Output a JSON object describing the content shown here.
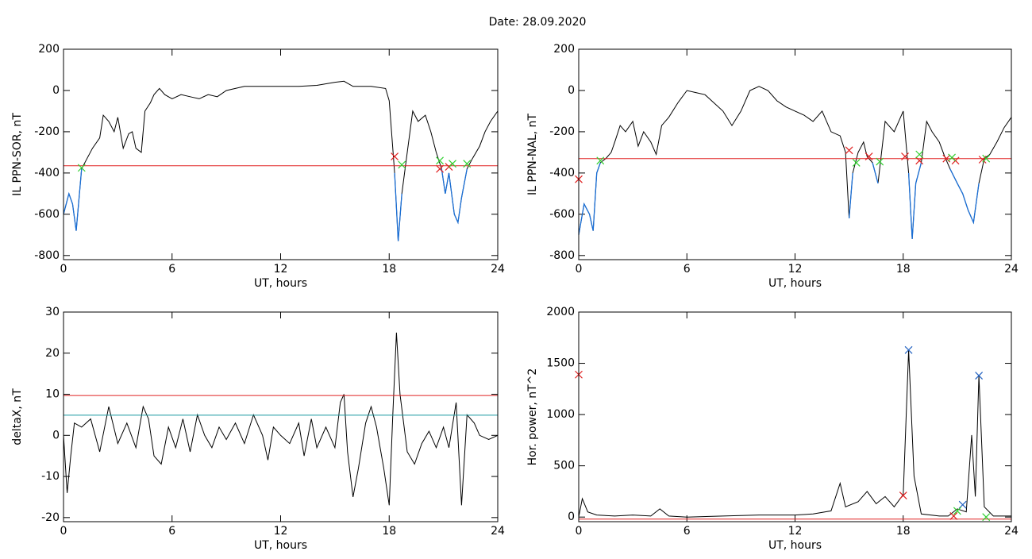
{
  "title": "Date:  28.09.2020",
  "chart_data": [
    {
      "type": "line",
      "xlabel": "UT, hours",
      "ylabel": "IL PPN-SOR, nT",
      "xlim": [
        0,
        24
      ],
      "ylim": [
        -820,
        200
      ],
      "xticks": [
        0,
        6,
        12,
        18,
        24
      ],
      "yticks": [
        200,
        0,
        -200,
        -400,
        -600,
        -800
      ],
      "series": [
        {
          "color": "#000000",
          "below_color": "#1a6fd6",
          "x": [
            0,
            0.3,
            0.5,
            0.7,
            1.0,
            1.3,
            1.6,
            2.0,
            2.2,
            2.5,
            2.8,
            3.0,
            3.3,
            3.6,
            3.8,
            4.0,
            4.3,
            4.5,
            4.8,
            5.0,
            5.3,
            5.6,
            6.0,
            6.5,
            7.0,
            7.5,
            8.0,
            8.5,
            9,
            9.5,
            10,
            11,
            12,
            13,
            14,
            15,
            15.5,
            16,
            17,
            17.8,
            18.0,
            18.3,
            18.5,
            18.7,
            19.0,
            19.3,
            19.6,
            20.0,
            20.3,
            20.6,
            20.9,
            21.1,
            21.3,
            21.6,
            21.8,
            22.0,
            22.3,
            22.6,
            23.0,
            23.3,
            23.6,
            24
          ],
          "values": [
            -600,
            -500,
            -550,
            -680,
            -380,
            -330,
            -280,
            -230,
            -120,
            -150,
            -200,
            -130,
            -280,
            -210,
            -200,
            -280,
            -300,
            -100,
            -60,
            -20,
            10,
            -20,
            -40,
            -20,
            -30,
            -40,
            -20,
            -30,
            0,
            10,
            20,
            20,
            20,
            20,
            25,
            40,
            45,
            20,
            20,
            10,
            -50,
            -400,
            -730,
            -500,
            -300,
            -100,
            -150,
            -120,
            -200,
            -300,
            -380,
            -500,
            -400,
            -600,
            -640,
            -520,
            -380,
            -330,
            -270,
            -200,
            -150,
            -100
          ]
        }
      ],
      "hlines": [
        {
          "value": -365,
          "color": "#e02020"
        }
      ],
      "markers": [
        {
          "color": "#e02020",
          "x": [
            18.3,
            20.8,
            21.3
          ],
          "values": [
            -320,
            -380,
            -370
          ]
        },
        {
          "color": "#30d030",
          "x": [
            1.0,
            18.7,
            20.8,
            21.5,
            22.3
          ],
          "values": [
            -375,
            -360,
            -340,
            -355,
            -355
          ]
        }
      ]
    },
    {
      "type": "line",
      "xlabel": "UT, hours",
      "ylabel": "IL PPN-NAL, nT",
      "xlim": [
        0,
        24
      ],
      "ylim": [
        -820,
        200
      ],
      "xticks": [
        0,
        6,
        12,
        18,
        24
      ],
      "yticks": [
        200,
        0,
        -200,
        -400,
        -600,
        -800
      ],
      "series": [
        {
          "color": "#000000",
          "below_color": "#1a6fd6",
          "x": [
            0,
            0.3,
            0.6,
            0.8,
            1.0,
            1.2,
            1.5,
            1.8,
            2.0,
            2.3,
            2.6,
            3.0,
            3.3,
            3.6,
            4.0,
            4.3,
            4.6,
            5.0,
            5.5,
            6.0,
            6.5,
            7.0,
            7.5,
            8.0,
            8.5,
            9.0,
            9.5,
            10,
            10.5,
            11,
            11.5,
            12,
            12.5,
            13,
            13.5,
            14.0,
            14.5,
            14.8,
            15.0,
            15.2,
            15.5,
            15.8,
            16.0,
            16.3,
            16.6,
            16.8,
            17.0,
            17.5,
            18.0,
            18.3,
            18.5,
            18.7,
            19.0,
            19.3,
            19.6,
            20.0,
            20.3,
            20.6,
            21.0,
            21.3,
            21.6,
            21.9,
            22.2,
            22.5,
            22.8,
            23.2,
            23.6,
            24
          ],
          "values": [
            -700,
            -550,
            -600,
            -680,
            -400,
            -350,
            -330,
            -300,
            -250,
            -170,
            -200,
            -150,
            -270,
            -200,
            -250,
            -310,
            -170,
            -130,
            -60,
            0,
            -10,
            -20,
            -60,
            -100,
            -170,
            -100,
            0,
            20,
            0,
            -50,
            -80,
            -100,
            -120,
            -150,
            -100,
            -200,
            -220,
            -300,
            -620,
            -400,
            -300,
            -250,
            -320,
            -350,
            -450,
            -300,
            -150,
            -200,
            -100,
            -400,
            -720,
            -450,
            -350,
            -150,
            -200,
            -250,
            -320,
            -380,
            -450,
            -500,
            -580,
            -640,
            -450,
            -330,
            -310,
            -250,
            -180,
            -130
          ]
        }
      ],
      "hlines": [
        {
          "value": -330,
          "color": "#e02020"
        }
      ],
      "markers": [
        {
          "color": "#e02020",
          "x": [
            0,
            15.0,
            16.1,
            18.1,
            18.9,
            20.4,
            20.9,
            22.4
          ],
          "values": [
            -430,
            -290,
            -320,
            -320,
            -340,
            -330,
            -340,
            -335
          ]
        },
        {
          "color": "#30d030",
          "x": [
            1.2,
            15.4,
            16.7,
            18.9,
            20.7,
            22.6
          ],
          "values": [
            -340,
            -350,
            -345,
            -310,
            -325,
            -330
          ]
        }
      ]
    },
    {
      "type": "line",
      "xlabel": "UT, hours",
      "ylabel": "deltaX, nT",
      "xlim": [
        0,
        24
      ],
      "ylim": [
        -21,
        30
      ],
      "xticks": [
        0,
        6,
        12,
        18,
        24
      ],
      "yticks": [
        30,
        20,
        10,
        0,
        -10,
        -20
      ],
      "series": [
        {
          "color": "#000000",
          "x": [
            0,
            0.2,
            0.4,
            0.6,
            1,
            1.5,
            2,
            2.5,
            3,
            3.5,
            4,
            4.4,
            4.7,
            5,
            5.4,
            5.8,
            6.2,
            6.6,
            7,
            7.4,
            7.8,
            8.2,
            8.6,
            9,
            9.5,
            10,
            10.5,
            11,
            11.3,
            11.6,
            12,
            12.5,
            13,
            13.3,
            13.7,
            14,
            14.5,
            15,
            15.3,
            15.5,
            15.7,
            16,
            16.3,
            16.7,
            17,
            17.3,
            17.7,
            18,
            18.2,
            18.4,
            18.6,
            19,
            19.4,
            19.8,
            20.2,
            20.6,
            21,
            21.3,
            21.7,
            22,
            22.3,
            22.7,
            23,
            23.5,
            24
          ],
          "values": [
            0,
            -14,
            -5,
            3,
            2,
            4,
            -4,
            7,
            -2,
            3,
            -3,
            7,
            4,
            -5,
            -7,
            2,
            -3,
            4,
            -4,
            5,
            0,
            -3,
            2,
            -1,
            3,
            -2,
            5,
            0,
            -6,
            2,
            0,
            -2,
            3,
            -5,
            4,
            -3,
            2,
            -3,
            8,
            10,
            -4,
            -15,
            -8,
            3,
            7,
            2,
            -8,
            -17,
            5,
            25,
            10,
            -4,
            -7,
            -2,
            1,
            -3,
            2,
            -3,
            8,
            -17,
            5,
            3,
            0,
            -1,
            0
          ]
        }
      ],
      "hlines": [
        {
          "value": 9.7,
          "color": "#e02020"
        },
        {
          "value": 4.9,
          "color": "#1a9aa0"
        }
      ],
      "markers": []
    },
    {
      "type": "line",
      "xlabel": "UT, hours",
      "ylabel": "Hor. power, nT^2",
      "xlim": [
        0,
        24
      ],
      "ylim": [
        -45,
        2000
      ],
      "xticks": [
        0,
        6,
        12,
        18,
        24
      ],
      "yticks": [
        2000,
        1500,
        1000,
        500,
        0
      ],
      "series": [
        {
          "color": "#000000",
          "x": [
            0,
            0.2,
            0.5,
            1,
            2,
            3,
            4,
            4.5,
            5,
            6,
            8,
            10,
            12,
            13,
            14,
            14.5,
            14.8,
            15.5,
            16,
            16.5,
            17,
            17.5,
            18,
            18.3,
            18.6,
            19,
            20,
            20.5,
            21,
            21.5,
            21.8,
            22,
            22.2,
            22.5,
            23,
            24
          ],
          "values": [
            0,
            180,
            50,
            20,
            10,
            20,
            10,
            80,
            10,
            0,
            10,
            20,
            20,
            30,
            60,
            330,
            100,
            150,
            250,
            130,
            200,
            100,
            220,
            1630,
            400,
            30,
            10,
            10,
            80,
            50,
            800,
            200,
            1380,
            100,
            10,
            10
          ]
        }
      ],
      "hlines": [
        {
          "value": -20,
          "color": "#e02020"
        }
      ],
      "markers": [
        {
          "color": "#2060c0",
          "x": [
            18.3,
            22.2,
            21.3
          ],
          "values": [
            1630,
            1380,
            120
          ]
        },
        {
          "color": "#e02020",
          "x": [
            0,
            18.0,
            20.8
          ],
          "values": [
            1390,
            210,
            10
          ]
        },
        {
          "color": "#30d030",
          "x": [
            21.0,
            22.6
          ],
          "values": [
            60,
            0
          ]
        }
      ]
    }
  ]
}
